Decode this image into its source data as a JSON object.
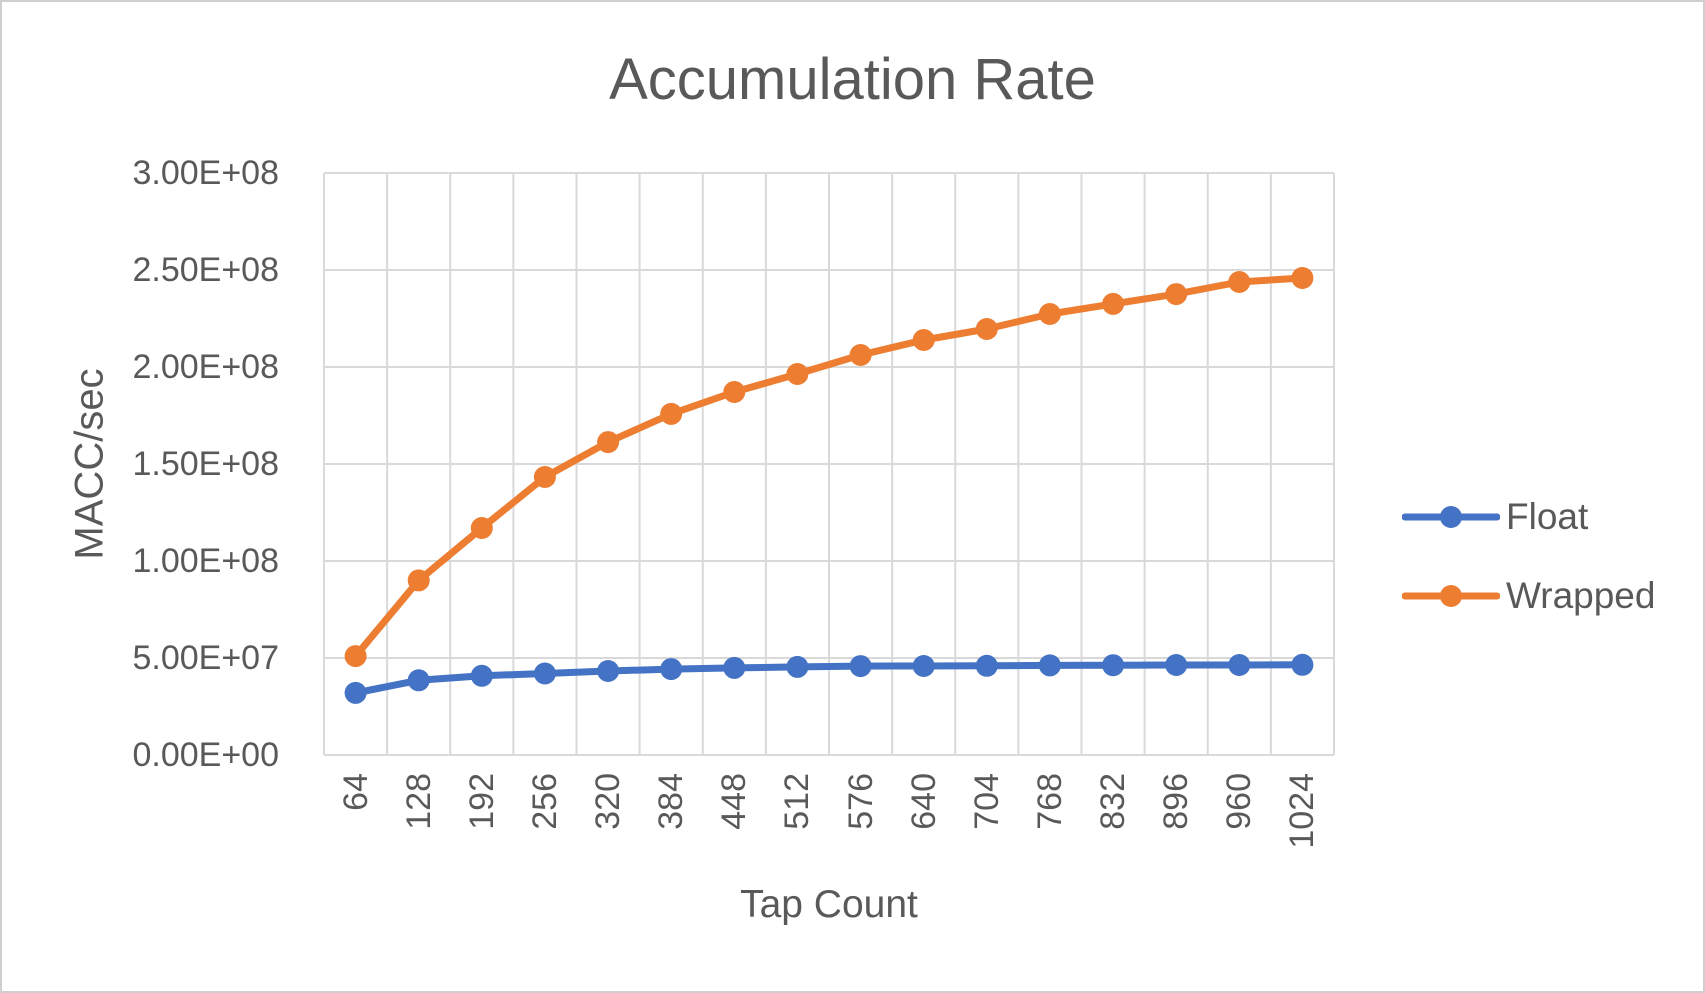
{
  "window": {
    "background": "#ffffff",
    "border_color": "#d0cece"
  },
  "chart_data": {
    "type": "line",
    "title": "Accumulation Rate",
    "xlabel": "Tap Count",
    "ylabel": "MACC/sec",
    "categories": [
      64,
      128,
      192,
      256,
      320,
      384,
      448,
      512,
      576,
      640,
      704,
      768,
      832,
      896,
      960,
      1024
    ],
    "series": [
      {
        "name": "Float",
        "color": "#4472C4",
        "values": [
          32000000,
          38500000,
          40800000,
          42000000,
          43300000,
          44300000,
          44900000,
          45400000,
          45800000,
          45900000,
          46000000,
          46200000,
          46300000,
          46400000,
          46400000,
          46500000
        ]
      },
      {
        "name": "Wrapped",
        "color": "#ED7D31",
        "values": [
          51000000,
          90000000,
          117000000,
          143300000,
          161300000,
          175800000,
          187100000,
          196400000,
          206200000,
          213900000,
          219600000,
          227300000,
          232500000,
          237600000,
          243800000,
          245900000
        ]
      }
    ],
    "ylim": [
      0,
      300000000
    ],
    "y_tick_labels": [
      "0.00E+00",
      "5.00E+07",
      "1.00E+08",
      "1.50E+08",
      "2.00E+08",
      "2.50E+08",
      "3.00E+08"
    ],
    "grid": true,
    "legend_position": "right",
    "text_color": "#595959",
    "gridline_color": "#D9D9D9"
  }
}
